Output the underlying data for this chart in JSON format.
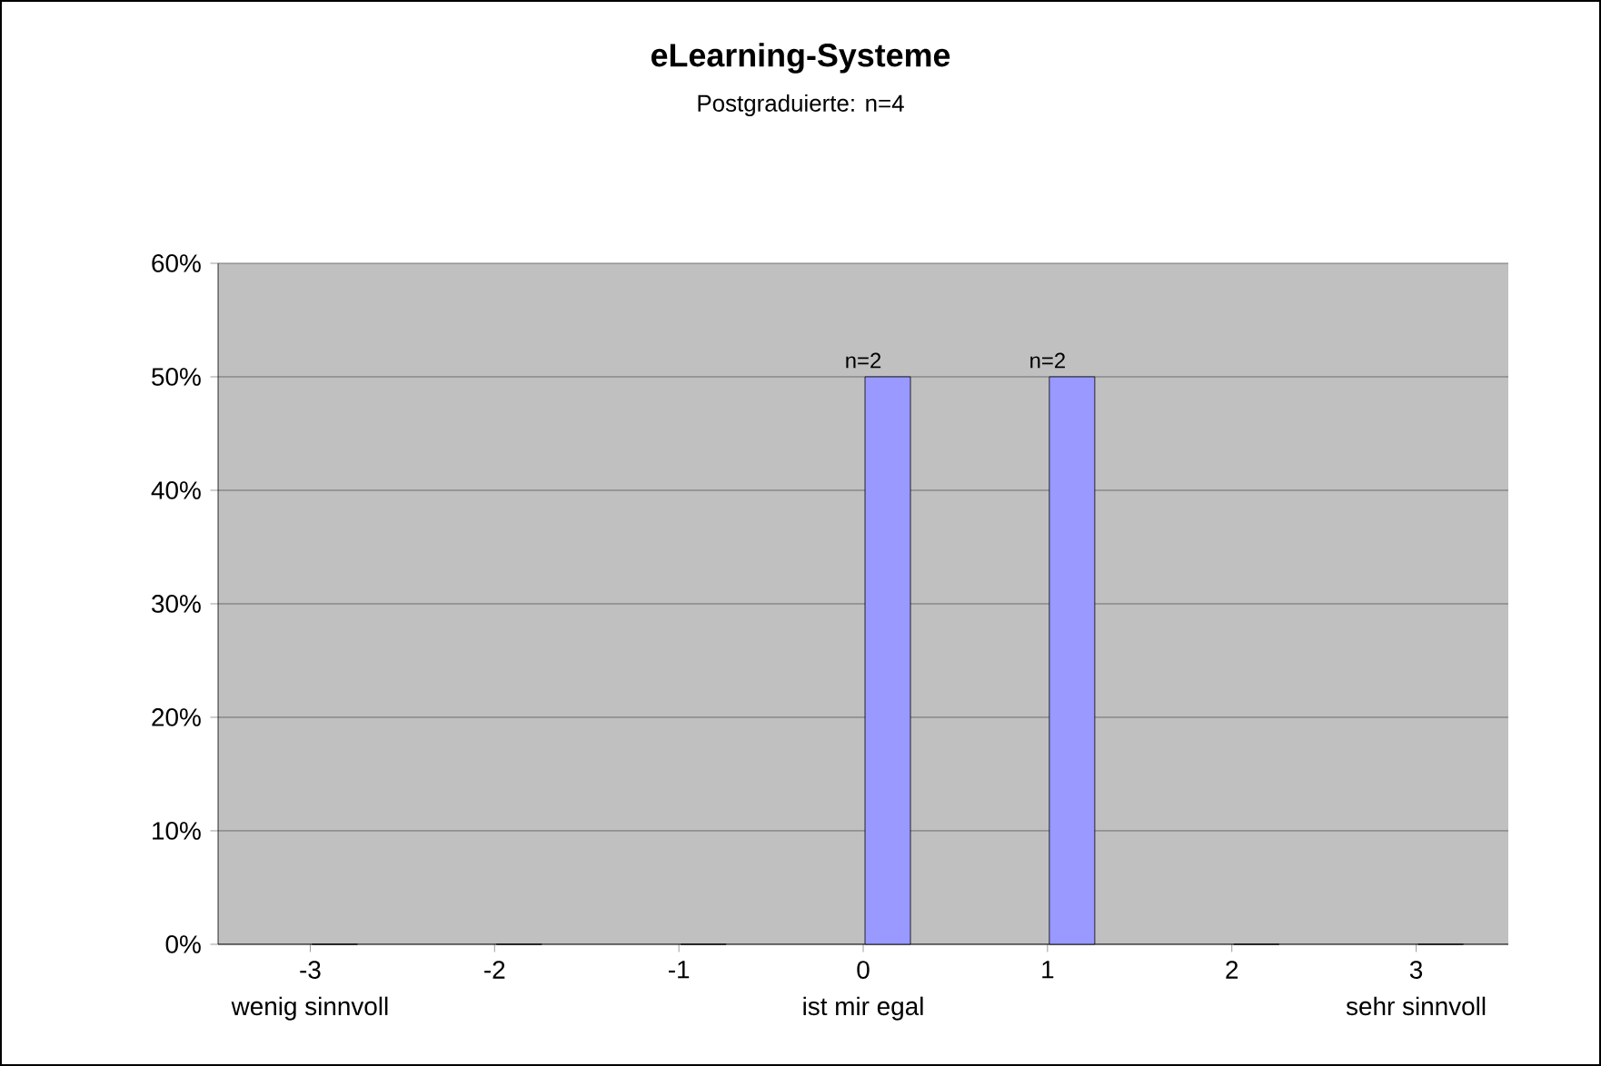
{
  "chart_data": {
    "type": "bar",
    "title": "eLearning-Systeme",
    "subtitle": "Postgraduierte: n=4",
    "categories": [
      "-3",
      "-2",
      "-1",
      "0",
      "1",
      "2",
      "3"
    ],
    "values": [
      0,
      0,
      0,
      50,
      50,
      0,
      0
    ],
    "color": "#9999ff",
    "ylim": [
      0,
      60
    ],
    "yticks": [
      {
        "value": 0,
        "label": "0%"
      },
      {
        "value": 10,
        "label": "10%"
      },
      {
        "value": 20,
        "label": "20%"
      },
      {
        "value": 30,
        "label": "30%"
      },
      {
        "value": 40,
        "label": "40%"
      },
      {
        "value": 50,
        "label": "50%"
      },
      {
        "value": 60,
        "label": "60%"
      }
    ],
    "grid": "y",
    "annotations": [
      {
        "text": "n=2",
        "x": "0",
        "y": 50
      },
      {
        "text": "n=2",
        "x": "1",
        "y": 50
      },
      "wenig sinnvoll",
      "ist mir egal",
      "sehr sinnvoll"
    ]
  }
}
